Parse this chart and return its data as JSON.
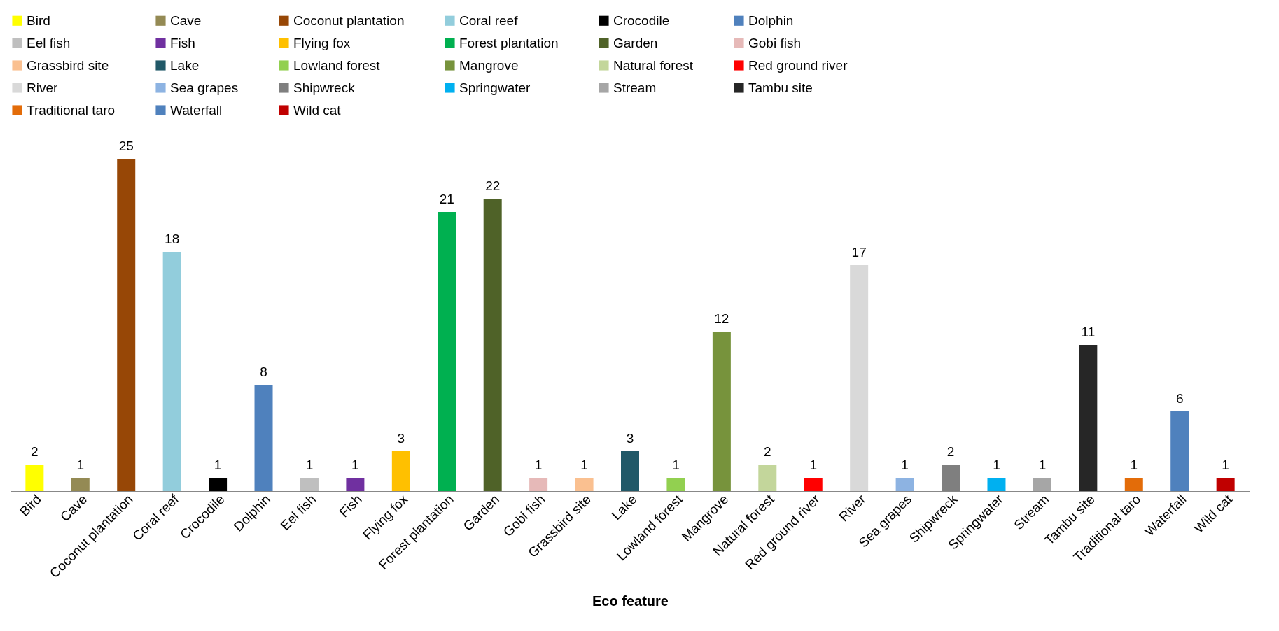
{
  "chart_data": {
    "type": "bar",
    "xlabel": "Eco feature",
    "stacked": true,
    "categories": [
      "Bird",
      "Cave",
      "Coconut plantation",
      "Coral reef",
      "Crocodile",
      "Dolphin",
      "Eel fish",
      "Fish",
      "Flying fox",
      "Forest plantation",
      "Garden",
      "Gobi fish",
      "Grassbird site",
      "Lake",
      "Lowland forest",
      "Mangrove",
      "Natural forest",
      "Red ground river",
      "River",
      "Sea grapes",
      "Shipwreck",
      "Springwater",
      "Stream",
      "Tambu site",
      "Traditional taro",
      "Waterfall",
      "Wild cat"
    ],
    "series": [
      {
        "name": "Bird",
        "color": "#ffff00",
        "values": [
          2,
          null,
          null,
          null,
          null,
          null,
          null,
          null,
          null,
          null,
          null,
          null,
          null,
          null,
          null,
          null,
          null,
          null,
          null,
          null,
          null,
          null,
          null,
          null,
          null,
          null,
          null
        ]
      },
      {
        "name": "Cave",
        "color": "#948a54",
        "values": [
          null,
          1,
          null,
          null,
          null,
          null,
          null,
          null,
          null,
          null,
          null,
          null,
          null,
          null,
          null,
          null,
          null,
          null,
          null,
          null,
          null,
          null,
          null,
          null,
          null,
          null,
          null
        ]
      },
      {
        "name": "Coconut plantation",
        "color": "#974706",
        "values": [
          null,
          null,
          25,
          null,
          null,
          null,
          null,
          null,
          null,
          null,
          null,
          null,
          null,
          null,
          null,
          null,
          null,
          null,
          null,
          null,
          null,
          null,
          null,
          null,
          null,
          null,
          null
        ]
      },
      {
        "name": "Coral reef",
        "color": "#92cddc",
        "values": [
          null,
          null,
          null,
          18,
          null,
          null,
          null,
          null,
          null,
          null,
          null,
          null,
          null,
          null,
          null,
          null,
          null,
          null,
          null,
          null,
          null,
          null,
          null,
          null,
          null,
          null,
          null
        ]
      },
      {
        "name": "Crocodile",
        "color": "#000000",
        "values": [
          null,
          null,
          null,
          null,
          1,
          null,
          null,
          null,
          null,
          null,
          null,
          null,
          null,
          null,
          null,
          null,
          null,
          null,
          null,
          null,
          null,
          null,
          null,
          null,
          null,
          null,
          null
        ]
      },
      {
        "name": "Dolphin",
        "color": "#4f81bd",
        "values": [
          null,
          null,
          null,
          null,
          null,
          8,
          null,
          null,
          null,
          null,
          null,
          null,
          null,
          null,
          null,
          null,
          null,
          null,
          null,
          null,
          null,
          null,
          null,
          null,
          null,
          null,
          null
        ]
      },
      {
        "name": "Eel fish",
        "color": "#bfbfbf",
        "values": [
          null,
          null,
          null,
          null,
          null,
          null,
          1,
          null,
          null,
          null,
          null,
          null,
          null,
          null,
          null,
          null,
          null,
          null,
          null,
          null,
          null,
          null,
          null,
          null,
          null,
          null,
          null
        ]
      },
      {
        "name": "Fish",
        "color": "#7030a0",
        "values": [
          null,
          null,
          null,
          null,
          null,
          null,
          null,
          1,
          null,
          null,
          null,
          null,
          null,
          null,
          null,
          null,
          null,
          null,
          null,
          null,
          null,
          null,
          null,
          null,
          null,
          null,
          null
        ]
      },
      {
        "name": "Flying fox",
        "color": "#ffc000",
        "values": [
          null,
          null,
          null,
          null,
          null,
          null,
          null,
          null,
          3,
          null,
          null,
          null,
          null,
          null,
          null,
          null,
          null,
          null,
          null,
          null,
          null,
          null,
          null,
          null,
          null,
          null,
          null
        ]
      },
      {
        "name": "Forest plantation",
        "color": "#00b050",
        "values": [
          null,
          null,
          null,
          null,
          null,
          null,
          null,
          null,
          null,
          21,
          null,
          null,
          null,
          null,
          null,
          null,
          null,
          null,
          null,
          null,
          null,
          null,
          null,
          null,
          null,
          null,
          null
        ]
      },
      {
        "name": "Garden",
        "color": "#4f6228",
        "values": [
          null,
          null,
          null,
          null,
          null,
          null,
          null,
          null,
          null,
          null,
          22,
          null,
          null,
          null,
          null,
          null,
          null,
          null,
          null,
          null,
          null,
          null,
          null,
          null,
          null,
          null,
          null
        ]
      },
      {
        "name": "Gobi fish",
        "color": "#e6b9b8",
        "values": [
          null,
          null,
          null,
          null,
          null,
          null,
          null,
          null,
          null,
          null,
          null,
          1,
          null,
          null,
          null,
          null,
          null,
          null,
          null,
          null,
          null,
          null,
          null,
          null,
          null,
          null,
          null
        ]
      },
      {
        "name": "Grassbird site",
        "color": "#fac090",
        "values": [
          null,
          null,
          null,
          null,
          null,
          null,
          null,
          null,
          null,
          null,
          null,
          null,
          1,
          null,
          null,
          null,
          null,
          null,
          null,
          null,
          null,
          null,
          null,
          null,
          null,
          null,
          null
        ]
      },
      {
        "name": "Lake",
        "color": "#215968",
        "values": [
          null,
          null,
          null,
          null,
          null,
          null,
          null,
          null,
          null,
          null,
          null,
          null,
          null,
          3,
          null,
          null,
          null,
          null,
          null,
          null,
          null,
          null,
          null,
          null,
          null,
          null,
          null
        ]
      },
      {
        "name": "Lowland forest",
        "color": "#92d050",
        "values": [
          null,
          null,
          null,
          null,
          null,
          null,
          null,
          null,
          null,
          null,
          null,
          null,
          null,
          null,
          1,
          null,
          null,
          null,
          null,
          null,
          null,
          null,
          null,
          null,
          null,
          null,
          null
        ]
      },
      {
        "name": "Mangrove",
        "color": "#77933c",
        "values": [
          null,
          null,
          null,
          null,
          null,
          null,
          null,
          null,
          null,
          null,
          null,
          null,
          null,
          null,
          null,
          12,
          null,
          null,
          null,
          null,
          null,
          null,
          null,
          null,
          null,
          null,
          null
        ]
      },
      {
        "name": "Natural forest",
        "color": "#c3d69b",
        "values": [
          null,
          null,
          null,
          null,
          null,
          null,
          null,
          null,
          null,
          null,
          null,
          null,
          null,
          null,
          null,
          null,
          2,
          null,
          null,
          null,
          null,
          null,
          null,
          null,
          null,
          null,
          null
        ]
      },
      {
        "name": "Red ground river",
        "color": "#ff0000",
        "values": [
          null,
          null,
          null,
          null,
          null,
          null,
          null,
          null,
          null,
          null,
          null,
          null,
          null,
          null,
          null,
          null,
          null,
          1,
          null,
          null,
          null,
          null,
          null,
          null,
          null,
          null,
          null
        ]
      },
      {
        "name": "River",
        "color": "#d9d9d9",
        "values": [
          null,
          null,
          null,
          null,
          null,
          null,
          null,
          null,
          null,
          null,
          null,
          null,
          null,
          null,
          null,
          null,
          null,
          null,
          17,
          null,
          null,
          null,
          null,
          null,
          null,
          null,
          null
        ]
      },
      {
        "name": "Sea grapes",
        "color": "#8db3e2",
        "values": [
          null,
          null,
          null,
          null,
          null,
          null,
          null,
          null,
          null,
          null,
          null,
          null,
          null,
          null,
          null,
          null,
          null,
          null,
          null,
          1,
          null,
          null,
          null,
          null,
          null,
          null,
          null
        ]
      },
      {
        "name": "Shipwreck",
        "color": "#7f7f7f",
        "values": [
          null,
          null,
          null,
          null,
          null,
          null,
          null,
          null,
          null,
          null,
          null,
          null,
          null,
          null,
          null,
          null,
          null,
          null,
          null,
          null,
          2,
          null,
          null,
          null,
          null,
          null,
          null
        ]
      },
      {
        "name": "Springwater",
        "color": "#00b0f0",
        "values": [
          null,
          null,
          null,
          null,
          null,
          null,
          null,
          null,
          null,
          null,
          null,
          null,
          null,
          null,
          null,
          null,
          null,
          null,
          null,
          null,
          null,
          1,
          null,
          null,
          null,
          null,
          null
        ]
      },
      {
        "name": "Stream",
        "color": "#a6a6a6",
        "values": [
          null,
          null,
          null,
          null,
          null,
          null,
          null,
          null,
          null,
          null,
          null,
          null,
          null,
          null,
          null,
          null,
          null,
          null,
          null,
          null,
          null,
          null,
          1,
          null,
          null,
          null,
          null
        ]
      },
      {
        "name": "Tambu site",
        "color": "#262626",
        "values": [
          null,
          null,
          null,
          null,
          null,
          null,
          null,
          null,
          null,
          null,
          null,
          null,
          null,
          null,
          null,
          null,
          null,
          null,
          null,
          null,
          null,
          null,
          null,
          11,
          null,
          null,
          null
        ]
      },
      {
        "name": "Traditional taro",
        "color": "#e36c09",
        "values": [
          null,
          null,
          null,
          null,
          null,
          null,
          null,
          null,
          null,
          null,
          null,
          null,
          null,
          null,
          null,
          null,
          null,
          null,
          null,
          null,
          null,
          null,
          null,
          null,
          1,
          null,
          null
        ]
      },
      {
        "name": "Waterfall",
        "color": "#4f81bd",
        "values": [
          null,
          null,
          null,
          null,
          null,
          null,
          null,
          null,
          null,
          null,
          null,
          null,
          null,
          null,
          null,
          null,
          null,
          null,
          null,
          null,
          null,
          null,
          null,
          null,
          null,
          6,
          null
        ]
      },
      {
        "name": "Wild cat",
        "color": "#c00000",
        "values": [
          null,
          null,
          null,
          null,
          null,
          null,
          null,
          null,
          null,
          null,
          null,
          null,
          null,
          null,
          null,
          null,
          null,
          null,
          null,
          null,
          null,
          null,
          null,
          null,
          null,
          null,
          1
        ]
      }
    ],
    "data_labels": true,
    "legend": "top",
    "grid": false,
    "tick_labels": "x"
  }
}
